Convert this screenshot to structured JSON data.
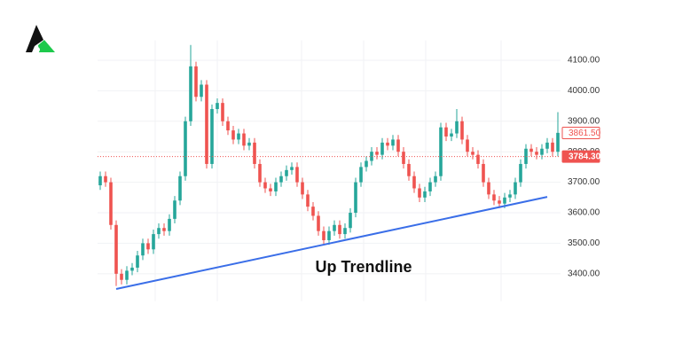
{
  "chart_data": {
    "type": "candlestick",
    "open": [
      3690,
      3720,
      3700,
      3560,
      3400,
      3380,
      3410,
      3420,
      3460,
      3500,
      3480,
      3530,
      3550,
      3540,
      3580,
      3640,
      3720,
      3900,
      4080,
      3980,
      4020,
      3760,
      3940,
      3960,
      3900,
      3870,
      3840,
      3860,
      3820,
      3830,
      3760,
      3700,
      3680,
      3670,
      3700,
      3720,
      3740,
      3750,
      3700,
      3660,
      3620,
      3590,
      3540,
      3510,
      3540,
      3560,
      3530,
      3550,
      3600,
      3700,
      3750,
      3770,
      3800,
      3790,
      3830,
      3820,
      3840,
      3800,
      3760,
      3720,
      3680,
      3650,
      3670,
      3700,
      3720,
      3880,
      3850,
      3860,
      3900,
      3840,
      3800,
      3790,
      3760,
      3700,
      3660,
      3640,
      3630,
      3650,
      3660,
      3700,
      3760,
      3810,
      3800,
      3790,
      3810,
      3830,
      3800
    ],
    "high": [
      3735,
      3735,
      3715,
      3575,
      3415,
      3425,
      3435,
      3475,
      3515,
      3515,
      3545,
      3565,
      3565,
      3595,
      3655,
      3735,
      3915,
      4150,
      4095,
      4035,
      4035,
      3955,
      3975,
      3975,
      3915,
      3885,
      3875,
      3875,
      3845,
      3845,
      3775,
      3715,
      3695,
      3715,
      3735,
      3755,
      3765,
      3765,
      3715,
      3675,
      3635,
      3605,
      3555,
      3555,
      3575,
      3575,
      3565,
      3615,
      3715,
      3765,
      3785,
      3815,
      3815,
      3845,
      3845,
      3855,
      3855,
      3815,
      3775,
      3735,
      3695,
      3685,
      3715,
      3735,
      3895,
      3895,
      3875,
      3940,
      3915,
      3855,
      3815,
      3805,
      3775,
      3715,
      3675,
      3655,
      3665,
      3675,
      3715,
      3775,
      3825,
      3825,
      3815,
      3825,
      3845,
      3845,
      3930
    ],
    "low": [
      3675,
      3685,
      3545,
      3360,
      3365,
      3365,
      3395,
      3405,
      3445,
      3465,
      3465,
      3515,
      3525,
      3525,
      3565,
      3625,
      3705,
      3885,
      3965,
      3965,
      3745,
      3745,
      3925,
      3885,
      3855,
      3825,
      3825,
      3805,
      3805,
      3745,
      3685,
      3665,
      3655,
      3655,
      3685,
      3705,
      3725,
      3685,
      3645,
      3605,
      3575,
      3525,
      3495,
      3495,
      3525,
      3515,
      3515,
      3535,
      3585,
      3685,
      3735,
      3755,
      3775,
      3775,
      3805,
      3805,
      3785,
      3745,
      3705,
      3665,
      3635,
      3635,
      3655,
      3685,
      3705,
      3835,
      3835,
      3845,
      3825,
      3785,
      3775,
      3745,
      3685,
      3645,
      3625,
      3615,
      3615,
      3635,
      3645,
      3685,
      3745,
      3785,
      3775,
      3775,
      3795,
      3785,
      3785
    ],
    "close": [
      3720,
      3700,
      3560,
      3400,
      3380,
      3410,
      3420,
      3460,
      3500,
      3480,
      3530,
      3550,
      3540,
      3580,
      3640,
      3720,
      3900,
      4080,
      3980,
      4020,
      3760,
      3940,
      3960,
      3900,
      3870,
      3840,
      3860,
      3820,
      3830,
      3760,
      3700,
      3680,
      3670,
      3700,
      3720,
      3740,
      3750,
      3700,
      3660,
      3620,
      3590,
      3540,
      3510,
      3540,
      3560,
      3530,
      3550,
      3600,
      3700,
      3750,
      3770,
      3800,
      3790,
      3830,
      3820,
      3840,
      3800,
      3760,
      3720,
      3680,
      3650,
      3670,
      3700,
      3720,
      3880,
      3850,
      3860,
      3900,
      3840,
      3800,
      3790,
      3760,
      3700,
      3660,
      3640,
      3630,
      3650,
      3660,
      3700,
      3760,
      3810,
      3800,
      3790,
      3810,
      3830,
      3800,
      3862
    ],
    "up_color": "#26a69a",
    "down_color": "#ef5350",
    "ylim": [
      3310,
      4165
    ],
    "yticks": [
      {
        "value": 3400,
        "label": "3400.00"
      },
      {
        "value": 3500,
        "label": "3500.00"
      },
      {
        "value": 3600,
        "label": "3600.00"
      },
      {
        "value": 3700,
        "label": "3700.00"
      },
      {
        "value": 3800,
        "label": "3800.00"
      },
      {
        "value": 3900,
        "label": "3900.00"
      },
      {
        "value": 4000,
        "label": "4000.00"
      },
      {
        "value": 4100,
        "label": "4100.00"
      }
    ],
    "grid": true,
    "price_labels": [
      {
        "value": 3861.5,
        "label": "3861.50",
        "style": "outline"
      },
      {
        "value": 3784.3,
        "label": "3784.30",
        "style": "filled"
      }
    ],
    "last_price_line": 3784.3,
    "trendline": {
      "label": "Up Trendline",
      "start": [
        3,
        3350
      ],
      "end": [
        84,
        3652
      ],
      "color": "#3a6ee8"
    }
  }
}
